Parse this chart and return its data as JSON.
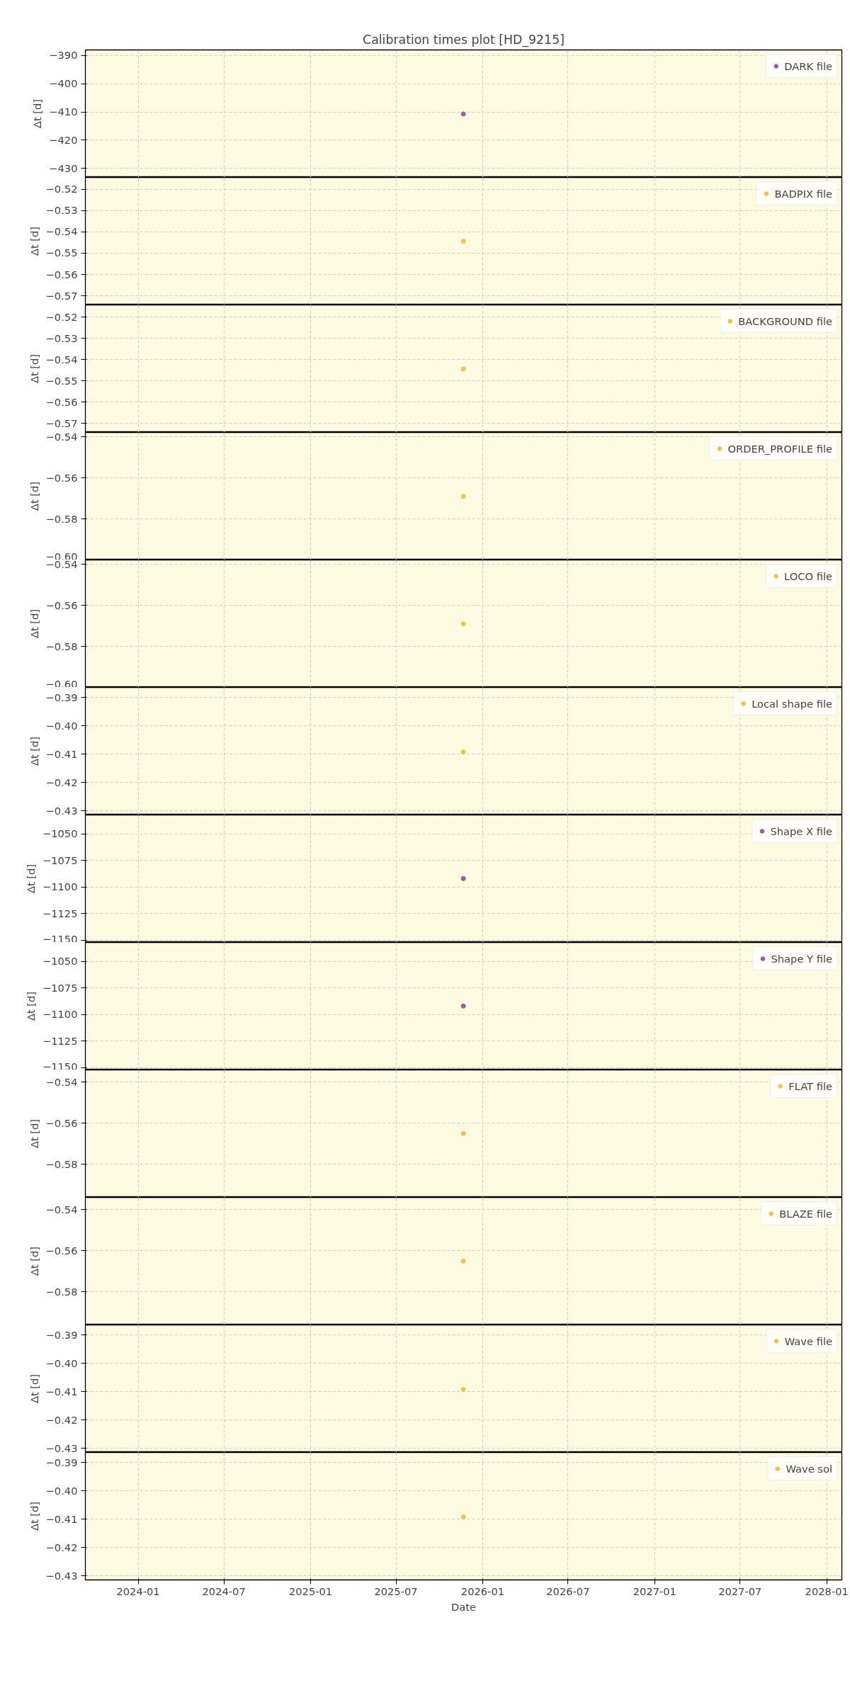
{
  "chart_data": [
    {
      "type": "scatter",
      "title": "Calibration times plot [HD_9215]",
      "ylabel": "Δt [d]",
      "x": [
        "2025-11-21"
      ],
      "series": [
        {
          "name": "DARK file",
          "color": "#a8559e",
          "values": [
            -410.7
          ]
        }
      ],
      "xlim": [
        "2023-09-11",
        "2028-02-02"
      ],
      "xticks": [
        "2024-01",
        "2024-07",
        "2025-01",
        "2025-07",
        "2026-01",
        "2026-07",
        "2027-01",
        "2027-07",
        "2028-01"
      ],
      "ylim": [
        -433.2,
        -388.0
      ],
      "yticks": [
        {
          "value": -390,
          "label": "−390"
        },
        {
          "value": -400,
          "label": "−400"
        },
        {
          "value": -410,
          "label": "−410"
        },
        {
          "value": -420,
          "label": "−420"
        },
        {
          "value": -430,
          "label": "−430"
        }
      ],
      "grid": true,
      "legend": "top right",
      "marker": "circle",
      "tick_labels": "y"
    },
    {
      "type": "scatter",
      "ylabel": "Δt [d]",
      "x": [
        "2025-11-21"
      ],
      "series": [
        {
          "name": "BADPIX file",
          "color": "#fbbf45",
          "values": [
            -0.5444
          ]
        }
      ],
      "xlim": [
        "2023-09-11",
        "2028-02-02"
      ],
      "xticks": [
        "2024-01",
        "2024-07",
        "2025-01",
        "2025-07",
        "2026-01",
        "2026-07",
        "2027-01",
        "2027-07",
        "2028-01"
      ],
      "ylim": [
        -0.5743,
        -0.5144
      ],
      "yticks": [
        {
          "value": -0.52,
          "label": "−0.52"
        },
        {
          "value": -0.53,
          "label": "−0.53"
        },
        {
          "value": -0.54,
          "label": "−0.54"
        },
        {
          "value": -0.55,
          "label": "−0.55"
        },
        {
          "value": -0.56,
          "label": "−0.56"
        },
        {
          "value": -0.57,
          "label": "−0.57"
        }
      ],
      "grid": true,
      "legend": "top right",
      "marker": "circle",
      "tick_labels": "y"
    },
    {
      "type": "scatter",
      "ylabel": "Δt [d]",
      "x": [
        "2025-11-21"
      ],
      "series": [
        {
          "name": "BACKGROUND file",
          "color": "#fbbf45",
          "values": [
            -0.5444
          ]
        }
      ],
      "xlim": [
        "2023-09-11",
        "2028-02-02"
      ],
      "xticks": [
        "2024-01",
        "2024-07",
        "2025-01",
        "2025-07",
        "2026-01",
        "2026-07",
        "2027-01",
        "2027-07",
        "2028-01"
      ],
      "ylim": [
        -0.5743,
        -0.5143
      ],
      "yticks": [
        {
          "value": -0.52,
          "label": "−0.52"
        },
        {
          "value": -0.53,
          "label": "−0.53"
        },
        {
          "value": -0.54,
          "label": "−0.54"
        },
        {
          "value": -0.55,
          "label": "−0.55"
        },
        {
          "value": -0.56,
          "label": "−0.56"
        },
        {
          "value": -0.57,
          "label": "−0.57"
        }
      ],
      "grid": true,
      "legend": "top right",
      "marker": "circle",
      "tick_labels": "y"
    },
    {
      "type": "scatter",
      "ylabel": "Δt [d]",
      "x": [
        "2025-11-21"
      ],
      "series": [
        {
          "name": "ORDER_PROFILE file",
          "color": "#fbbf45",
          "values": [
            -0.569
          ]
        }
      ],
      "xlim": [
        "2023-09-11",
        "2028-02-02"
      ],
      "xticks": [
        "2024-01",
        "2024-07",
        "2025-01",
        "2025-07",
        "2026-01",
        "2026-07",
        "2027-01",
        "2027-07",
        "2028-01"
      ],
      "ylim": [
        -0.6,
        -0.5378
      ],
      "yticks": [
        {
          "value": -0.54,
          "label": "−0.54"
        },
        {
          "value": -0.56,
          "label": "−0.56"
        },
        {
          "value": -0.58,
          "label": "−0.58"
        },
        {
          "value": -0.6,
          "label": "−0.60"
        }
      ],
      "grid": true,
      "legend": "top right",
      "marker": "circle",
      "tick_labels": "y"
    },
    {
      "type": "scatter",
      "ylabel": "Δt [d]",
      "x": [
        "2025-11-21"
      ],
      "series": [
        {
          "name": "LOCO file",
          "color": "#fbbf45",
          "values": [
            -0.569
          ]
        }
      ],
      "xlim": [
        "2023-09-11",
        "2028-02-02"
      ],
      "xticks": [
        "2024-01",
        "2024-07",
        "2025-01",
        "2025-07",
        "2026-01",
        "2026-07",
        "2027-01",
        "2027-07",
        "2028-01"
      ],
      "ylim": [
        -0.6,
        -0.5378
      ],
      "yticks": [
        {
          "value": -0.54,
          "label": "−0.54"
        },
        {
          "value": -0.56,
          "label": "−0.56"
        },
        {
          "value": -0.58,
          "label": "−0.58"
        },
        {
          "value": -0.6,
          "label": "−0.60"
        }
      ],
      "grid": true,
      "legend": "top right",
      "marker": "circle",
      "tick_labels": "y"
    },
    {
      "type": "scatter",
      "ylabel": "Δt [d]",
      "x": [
        "2025-11-21"
      ],
      "series": [
        {
          "name": "Local shape file",
          "color": "#fbbf45",
          "values": [
            -0.4092
          ]
        }
      ],
      "xlim": [
        "2023-09-11",
        "2028-02-02"
      ],
      "xticks": [
        "2024-01",
        "2024-07",
        "2025-01",
        "2025-07",
        "2026-01",
        "2026-07",
        "2027-01",
        "2027-07",
        "2028-01"
      ],
      "ylim": [
        -0.4314,
        -0.3865
      ],
      "yticks": [
        {
          "value": -0.39,
          "label": "−0.39"
        },
        {
          "value": -0.4,
          "label": "−0.40"
        },
        {
          "value": -0.41,
          "label": "−0.41"
        },
        {
          "value": -0.42,
          "label": "−0.42"
        },
        {
          "value": -0.43,
          "label": "−0.43"
        }
      ],
      "grid": true,
      "legend": "top right",
      "marker": "circle",
      "tick_labels": "y"
    },
    {
      "type": "scatter",
      "ylabel": "Δt [d]",
      "x": [
        "2025-11-21"
      ],
      "series": [
        {
          "name": "Shape X file",
          "color": "#a8559e",
          "values": [
            -1092
          ]
        }
      ],
      "xlim": [
        "2023-09-11",
        "2028-02-02"
      ],
      "xticks": [
        "2024-01",
        "2024-07",
        "2025-01",
        "2025-07",
        "2026-01",
        "2026-07",
        "2027-01",
        "2027-07",
        "2028-01"
      ],
      "ylim": [
        -1152.2,
        -1032
      ],
      "yticks": [
        {
          "value": -1050,
          "label": "−1050"
        },
        {
          "value": -1075,
          "label": "−1075"
        },
        {
          "value": -1100,
          "label": "−1100"
        },
        {
          "value": -1125,
          "label": "−1125"
        },
        {
          "value": -1150,
          "label": "−1150"
        }
      ],
      "grid": true,
      "legend": "top right",
      "marker": "circle",
      "tick_labels": "y"
    },
    {
      "type": "scatter",
      "ylabel": "Δt [d]",
      "x": [
        "2025-11-21"
      ],
      "series": [
        {
          "name": "Shape Y file",
          "color": "#a8559e",
          "values": [
            -1092
          ]
        }
      ],
      "xlim": [
        "2023-09-11",
        "2028-02-02"
      ],
      "xticks": [
        "2024-01",
        "2024-07",
        "2025-01",
        "2025-07",
        "2026-01",
        "2026-07",
        "2027-01",
        "2027-07",
        "2028-01"
      ],
      "ylim": [
        -1152.2,
        -1032
      ],
      "yticks": [
        {
          "value": -1050,
          "label": "−1050"
        },
        {
          "value": -1075,
          "label": "−1075"
        },
        {
          "value": -1100,
          "label": "−1100"
        },
        {
          "value": -1125,
          "label": "−1125"
        },
        {
          "value": -1150,
          "label": "−1150"
        }
      ],
      "grid": true,
      "legend": "top right",
      "marker": "circle",
      "tick_labels": "y"
    },
    {
      "type": "scatter",
      "ylabel": "Δt [d]",
      "x": [
        "2025-11-21"
      ],
      "series": [
        {
          "name": "FLAT file",
          "color": "#fbbf45",
          "values": [
            -0.565
          ]
        }
      ],
      "xlim": [
        "2023-09-11",
        "2028-02-02"
      ],
      "xticks": [
        "2024-01",
        "2024-07",
        "2025-01",
        "2025-07",
        "2026-01",
        "2026-07",
        "2027-01",
        "2027-07",
        "2028-01"
      ],
      "ylim": [
        -0.596,
        -0.5341
      ],
      "yticks": [
        {
          "value": -0.54,
          "label": "−0.54"
        },
        {
          "value": -0.56,
          "label": "−0.56"
        },
        {
          "value": -0.58,
          "label": "−0.58"
        }
      ],
      "grid": true,
      "legend": "top right",
      "marker": "circle",
      "tick_labels": "y"
    },
    {
      "type": "scatter",
      "ylabel": "Δt [d]",
      "x": [
        "2025-11-21"
      ],
      "series": [
        {
          "name": "BLAZE file",
          "color": "#fbbf45",
          "values": [
            -0.565
          ]
        }
      ],
      "xlim": [
        "2023-09-11",
        "2028-02-02"
      ],
      "xticks": [
        "2024-01",
        "2024-07",
        "2025-01",
        "2025-07",
        "2026-01",
        "2026-07",
        "2027-01",
        "2027-07",
        "2028-01"
      ],
      "ylim": [
        -0.596,
        -0.5341
      ],
      "yticks": [
        {
          "value": -0.54,
          "label": "−0.54"
        },
        {
          "value": -0.56,
          "label": "−0.56"
        },
        {
          "value": -0.58,
          "label": "−0.58"
        }
      ],
      "grid": true,
      "legend": "top right",
      "marker": "circle",
      "tick_labels": "y"
    },
    {
      "type": "scatter",
      "ylabel": "Δt [d]",
      "x": [
        "2025-11-21"
      ],
      "series": [
        {
          "name": "Wave file",
          "color": "#fbbf45",
          "values": [
            -0.4092
          ]
        }
      ],
      "xlim": [
        "2023-09-11",
        "2028-02-02"
      ],
      "xticks": [
        "2024-01",
        "2024-07",
        "2025-01",
        "2025-07",
        "2026-01",
        "2026-07",
        "2027-01",
        "2027-07",
        "2028-01"
      ],
      "ylim": [
        -0.4314,
        -0.3865
      ],
      "yticks": [
        {
          "value": -0.39,
          "label": "−0.39"
        },
        {
          "value": -0.4,
          "label": "−0.40"
        },
        {
          "value": -0.41,
          "label": "−0.41"
        },
        {
          "value": -0.42,
          "label": "−0.42"
        },
        {
          "value": -0.43,
          "label": "−0.43"
        }
      ],
      "grid": true,
      "legend": "top right",
      "marker": "circle",
      "tick_labels": "y"
    },
    {
      "type": "scatter",
      "ylabel": "Δt [d]",
      "xlabel": "Date",
      "x": [
        "2025-11-21"
      ],
      "series": [
        {
          "name": "Wave sol",
          "color": "#fbbf45",
          "values": [
            -0.4092
          ]
        }
      ],
      "xlim": [
        "2023-09-11",
        "2028-02-02"
      ],
      "xticks": [
        "2024-01",
        "2024-07",
        "2025-01",
        "2025-07",
        "2026-01",
        "2026-07",
        "2027-01",
        "2027-07",
        "2028-01"
      ],
      "ylim": [
        -0.4314,
        -0.3865
      ],
      "yticks": [
        {
          "value": -0.39,
          "label": "−0.39"
        },
        {
          "value": -0.4,
          "label": "−0.40"
        },
        {
          "value": -0.41,
          "label": "−0.41"
        },
        {
          "value": -0.42,
          "label": "−0.42"
        },
        {
          "value": -0.43,
          "label": "−0.43"
        }
      ],
      "grid": true,
      "legend": "top right",
      "marker": "circle"
    }
  ]
}
